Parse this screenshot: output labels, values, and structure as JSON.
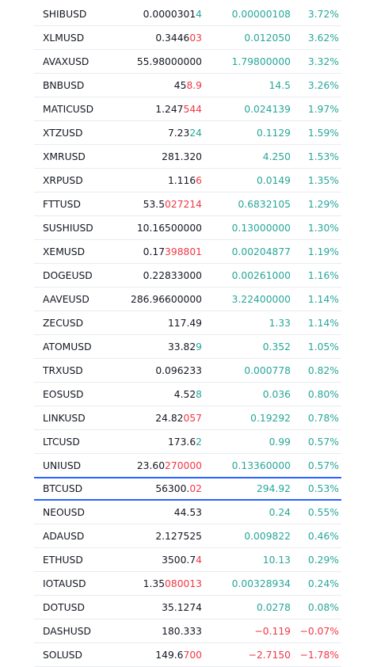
{
  "colors": {
    "up": "#26a69a",
    "down": "#f23645",
    "text": "#131722",
    "selected_border": "#2962ff",
    "divider": "#e9ebef"
  },
  "selected_symbol": "BTCUSD",
  "rows": [
    {
      "symbol": "SHIBUSD",
      "last_base": "0.0000301",
      "last_tick": "4",
      "tick_dir": "up",
      "change": "0.00000108",
      "change_pct": "3.72%",
      "dir": "up"
    },
    {
      "symbol": "XLMUSD",
      "last_base": "0.3446",
      "last_tick": "03",
      "tick_dir": "down",
      "change": "0.012050",
      "change_pct": "3.62%",
      "dir": "up"
    },
    {
      "symbol": "AVAXUSD",
      "last_base": "55.98000000",
      "last_tick": "",
      "tick_dir": "",
      "change": "1.79800000",
      "change_pct": "3.32%",
      "dir": "up"
    },
    {
      "symbol": "BNBUSD",
      "last_base": "45",
      "last_tick": "8.9",
      "tick_dir": "down",
      "change": "14.5",
      "change_pct": "3.26%",
      "dir": "up"
    },
    {
      "symbol": "MATICUSD",
      "last_base": "1.247",
      "last_tick": "544",
      "tick_dir": "down",
      "change": "0.024139",
      "change_pct": "1.97%",
      "dir": "up"
    },
    {
      "symbol": "XTZUSD",
      "last_base": "7.23",
      "last_tick": "24",
      "tick_dir": "up",
      "change": "0.1129",
      "change_pct": "1.59%",
      "dir": "up"
    },
    {
      "symbol": "XMRUSD",
      "last_base": "281.320",
      "last_tick": "",
      "tick_dir": "",
      "change": "4.250",
      "change_pct": "1.53%",
      "dir": "up"
    },
    {
      "symbol": "XRPUSD",
      "last_base": "1.116",
      "last_tick": "6",
      "tick_dir": "down",
      "change": "0.0149",
      "change_pct": "1.35%",
      "dir": "up"
    },
    {
      "symbol": "FTTUSD",
      "last_base": "53.5",
      "last_tick": "027214",
      "tick_dir": "down",
      "change": "0.6832105",
      "change_pct": "1.29%",
      "dir": "up"
    },
    {
      "symbol": "SUSHIUSD",
      "last_base": "10.16500000",
      "last_tick": "",
      "tick_dir": "",
      "change": "0.13000000",
      "change_pct": "1.30%",
      "dir": "up"
    },
    {
      "symbol": "XEMUSD",
      "last_base": "0.17",
      "last_tick": "398801",
      "tick_dir": "down",
      "change": "0.00204877",
      "change_pct": "1.19%",
      "dir": "up"
    },
    {
      "symbol": "DOGEUSD",
      "last_base": "0.22833000",
      "last_tick": "",
      "tick_dir": "",
      "change": "0.00261000",
      "change_pct": "1.16%",
      "dir": "up"
    },
    {
      "symbol": "AAVEUSD",
      "last_base": "286.96600000",
      "last_tick": "",
      "tick_dir": "",
      "change": "3.22400000",
      "change_pct": "1.14%",
      "dir": "up"
    },
    {
      "symbol": "ZECUSD",
      "last_base": "117.49",
      "last_tick": "",
      "tick_dir": "",
      "change": "1.33",
      "change_pct": "1.14%",
      "dir": "up"
    },
    {
      "symbol": "ATOMUSD",
      "last_base": "33.82",
      "last_tick": "9",
      "tick_dir": "up",
      "change": "0.352",
      "change_pct": "1.05%",
      "dir": "up"
    },
    {
      "symbol": "TRXUSD",
      "last_base": "0.096233",
      "last_tick": "",
      "tick_dir": "",
      "change": "0.000778",
      "change_pct": "0.82%",
      "dir": "up"
    },
    {
      "symbol": "EOSUSD",
      "last_base": "4.52",
      "last_tick": "8",
      "tick_dir": "up",
      "change": "0.036",
      "change_pct": "0.80%",
      "dir": "up"
    },
    {
      "symbol": "LINKUSD",
      "last_base": "24.82",
      "last_tick": "057",
      "tick_dir": "down",
      "change": "0.19292",
      "change_pct": "0.78%",
      "dir": "up"
    },
    {
      "symbol": "LTCUSD",
      "last_base": "173.6",
      "last_tick": "2",
      "tick_dir": "up",
      "change": "0.99",
      "change_pct": "0.57%",
      "dir": "up"
    },
    {
      "symbol": "UNIUSD",
      "last_base": "23.60",
      "last_tick": "270000",
      "tick_dir": "down",
      "change": "0.13360000",
      "change_pct": "0.57%",
      "dir": "up"
    },
    {
      "symbol": "BTCUSD",
      "last_base": "56300.",
      "last_tick": "02",
      "tick_dir": "down",
      "change": "294.92",
      "change_pct": "0.53%",
      "dir": "up"
    },
    {
      "symbol": "NEOUSD",
      "last_base": "44.53",
      "last_tick": "",
      "tick_dir": "",
      "change": "0.24",
      "change_pct": "0.55%",
      "dir": "up"
    },
    {
      "symbol": "ADAUSD",
      "last_base": "2.127525",
      "last_tick": "",
      "tick_dir": "",
      "change": "0.009822",
      "change_pct": "0.46%",
      "dir": "up"
    },
    {
      "symbol": "ETHUSD",
      "last_base": "3500.7",
      "last_tick": "4",
      "tick_dir": "down",
      "change": "10.13",
      "change_pct": "0.29%",
      "dir": "up"
    },
    {
      "symbol": "IOTAUSD",
      "last_base": "1.35",
      "last_tick": "080013",
      "tick_dir": "down",
      "change": "0.00328934",
      "change_pct": "0.24%",
      "dir": "up"
    },
    {
      "symbol": "DOTUSD",
      "last_base": "35.1274",
      "last_tick": "",
      "tick_dir": "",
      "change": "0.0278",
      "change_pct": "0.08%",
      "dir": "up"
    },
    {
      "symbol": "DASHUSD",
      "last_base": "180.333",
      "last_tick": "",
      "tick_dir": "",
      "change": "−0.119",
      "change_pct": "−0.07%",
      "dir": "down"
    },
    {
      "symbol": "SOLUSD",
      "last_base": "149.6",
      "last_tick": "700",
      "tick_dir": "down",
      "change": "−2.7150",
      "change_pct": "−1.78%",
      "dir": "down"
    }
  ]
}
